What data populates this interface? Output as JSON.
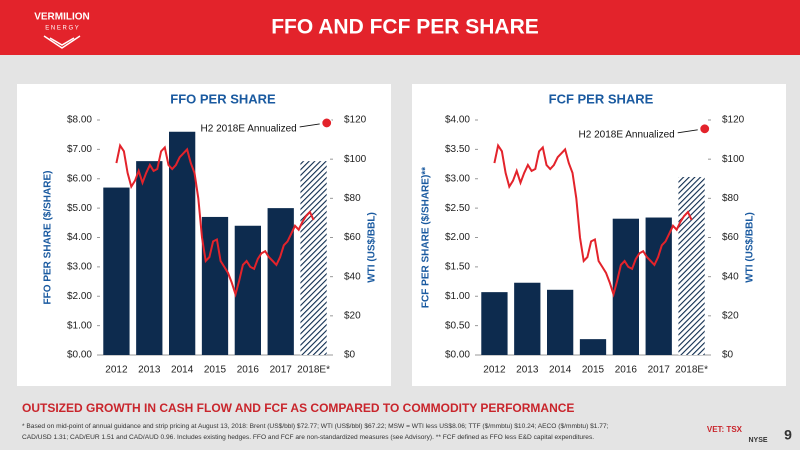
{
  "header": {
    "logo": "VERMILION",
    "logo_sub": "E N E R G Y",
    "title": "FFO AND FCF PER SHARE"
  },
  "subtitle": "OUTSIZED GROWTH IN CASH FLOW AND FCF AS COMPARED TO COMMODITY PERFORMANCE",
  "footnote": [
    "* Based on mid-point of annual guidance and strip pricing at August 13, 2018: Brent (US$/bbl) $72.77; WTI (US$/bbl) $67.22; MSW = WTI less US$8.06; TTF ($/mmbtu) $10.24; AECO ($/mmbtu) $1.77;",
    "CAD/USD 1.31; CAD/EUR 1.51 and CAD/AUD 0.96.  Includes existing hedges. FFO and FCF are non-standardized measures (see Advisory).  ** FCF defined as FFO less E&D capital expenditures."
  ],
  "listing": "VET: TSX",
  "listing2": "NYSE",
  "page_number": "9",
  "chart_data": [
    {
      "type": "bar",
      "title": "FFO PER SHARE",
      "y_label": "FFO PER SHARE ($/SHARE)",
      "y2_label": "WTI (US$/BBL)",
      "categories": [
        "2012",
        "2013",
        "2014",
        "2015",
        "2016",
        "2017",
        "2018E*"
      ],
      "values": [
        5.7,
        6.6,
        7.6,
        4.7,
        4.4,
        5.0,
        6.6
      ],
      "color": "#0d2b4e",
      "last_bar_hatched": true,
      "ylim": [
        0,
        8
      ],
      "yticks": [
        {
          "value": 0,
          "label": "$0.00"
        },
        {
          "value": 1,
          "label": "$1.00"
        },
        {
          "value": 2,
          "label": "$2.00"
        },
        {
          "value": 3,
          "label": "$3.00"
        },
        {
          "value": 4,
          "label": "$4.00"
        },
        {
          "value": 5,
          "label": "$5.00"
        },
        {
          "value": 6,
          "label": "$6.00"
        },
        {
          "value": 7,
          "label": "$7.00"
        },
        {
          "value": 8,
          "label": "$8.00"
        }
      ],
      "y2lim": [
        0,
        120
      ],
      "y2ticks": [
        {
          "value": 0,
          "label": "$0"
        },
        {
          "value": 20,
          "label": "$20"
        },
        {
          "value": 40,
          "label": "$40"
        },
        {
          "value": 60,
          "label": "$60"
        },
        {
          "value": 80,
          "label": "$80"
        },
        {
          "value": 100,
          "label": "$100"
        },
        {
          "value": 120,
          "label": "$120"
        }
      ],
      "wti": {
        "axis": "y2",
        "color": "#e3232b",
        "values": [
          98,
          107,
          104,
          93,
          86,
          89,
          94,
          88,
          93,
          97,
          94,
          95,
          104,
          106,
          97,
          95,
          97,
          101,
          103,
          105,
          98,
          93,
          80,
          60,
          48,
          50,
          58,
          59,
          48,
          45,
          42,
          37,
          31,
          38,
          46,
          48,
          45,
          44,
          49,
          52,
          53,
          50,
          48,
          46,
          50,
          56,
          58,
          62,
          66,
          64,
          68,
          71,
          73,
          69
        ]
      },
      "annotation": {
        "text": "H2 2018E Annualized",
        "value": 7.9
      }
    },
    {
      "type": "bar",
      "title": "FCF PER SHARE",
      "y_label": "FCF PER SHARE ($/SHARE)**",
      "y2_label": "WTI (US$/BBL)",
      "categories": [
        "2012",
        "2013",
        "2014",
        "2015",
        "2016",
        "2017",
        "2018E*"
      ],
      "values": [
        1.07,
        1.23,
        1.11,
        0.27,
        2.32,
        2.34,
        3.03
      ],
      "color": "#0d2b4e",
      "last_bar_hatched": true,
      "ylim": [
        0,
        4
      ],
      "yticks": [
        {
          "value": 0,
          "label": "$0.00"
        },
        {
          "value": 0.5,
          "label": "$0.50"
        },
        {
          "value": 1,
          "label": "$1.00"
        },
        {
          "value": 1.5,
          "label": "$1.50"
        },
        {
          "value": 2,
          "label": "$2.00"
        },
        {
          "value": 2.5,
          "label": "$2.50"
        },
        {
          "value": 3,
          "label": "$3.00"
        },
        {
          "value": 3.5,
          "label": "$3.50"
        },
        {
          "value": 4,
          "label": "$4.00"
        }
      ],
      "y2lim": [
        0,
        120
      ],
      "y2ticks": [
        {
          "value": 0,
          "label": "$0"
        },
        {
          "value": 20,
          "label": "$20"
        },
        {
          "value": 40,
          "label": "$40"
        },
        {
          "value": 60,
          "label": "$60"
        },
        {
          "value": 80,
          "label": "$80"
        },
        {
          "value": 100,
          "label": "$100"
        },
        {
          "value": 120,
          "label": "$120"
        }
      ],
      "wti": {
        "axis": "y2",
        "color": "#e3232b",
        "values": [
          98,
          107,
          104,
          93,
          86,
          89,
          94,
          88,
          93,
          97,
          94,
          95,
          104,
          106,
          97,
          95,
          97,
          101,
          103,
          105,
          98,
          93,
          80,
          60,
          48,
          50,
          58,
          59,
          48,
          45,
          42,
          37,
          31,
          38,
          46,
          48,
          45,
          44,
          49,
          52,
          53,
          50,
          48,
          46,
          50,
          56,
          58,
          62,
          66,
          64,
          68,
          71,
          73,
          69
        ]
      },
      "annotation": {
        "text": "H2 2018E Annualized",
        "value": 3.85
      }
    }
  ]
}
